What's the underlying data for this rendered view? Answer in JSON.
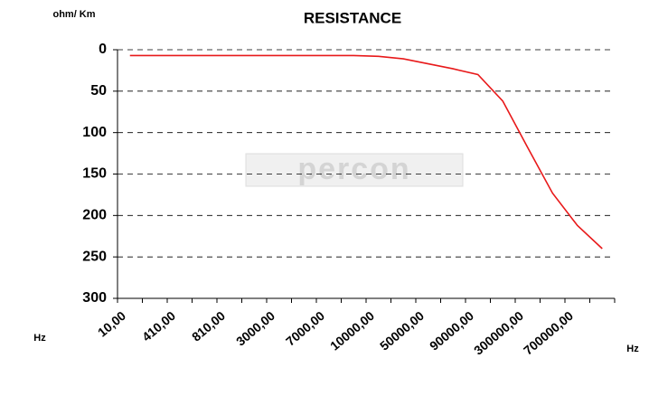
{
  "chart_data": {
    "type": "line",
    "title": "RESISTANCE",
    "y_axis_label": "ohm/ Km",
    "x_axis_label": "Hz",
    "annotations": [
      "Hz"
    ],
    "watermark": "percon",
    "categories": [
      "10,00",
      null,
      "410,00",
      null,
      "810,00",
      null,
      "3000,00",
      null,
      "7000,00",
      null,
      "10000,00",
      null,
      "50000,00",
      null,
      "90000,00",
      null,
      "300000,00",
      null,
      "700000,00",
      null
    ],
    "series": [
      {
        "name": "RESISTANCE",
        "color": "#e8191a",
        "values": [
          7,
          7,
          7,
          7,
          7,
          7,
          7,
          7,
          7,
          7,
          8,
          11,
          17,
          23,
          30,
          62,
          118,
          173,
          212,
          240
        ]
      }
    ],
    "ylim": [
      0,
      300
    ],
    "yticks": [
      0,
      50,
      100,
      150,
      200,
      250,
      300
    ],
    "y_inverted": true,
    "grid": true
  }
}
